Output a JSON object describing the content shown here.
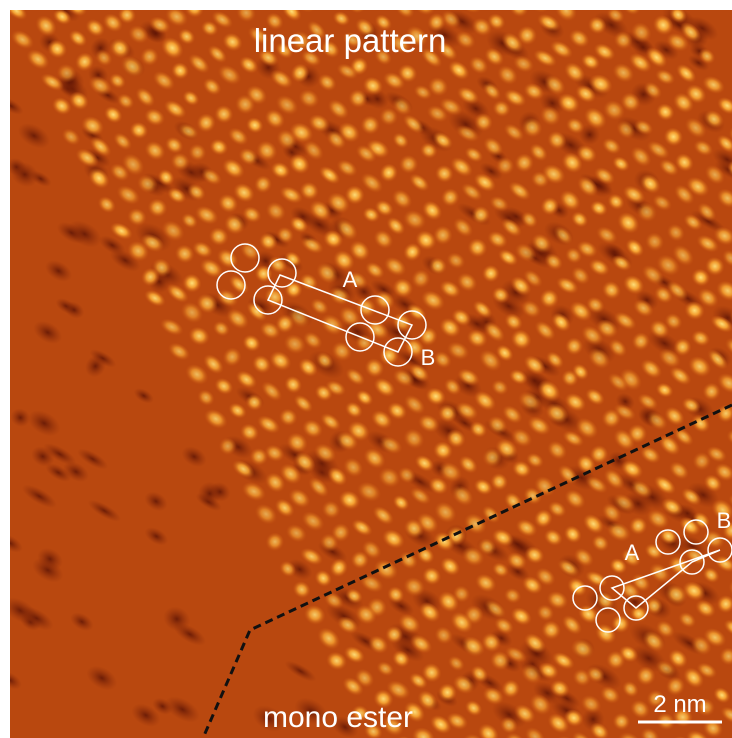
{
  "image": {
    "top_label": "linear pattern",
    "bottom_label": "mono ester",
    "scale_bar": "2 nm",
    "unit_cell_upper": {
      "corner_a": "A",
      "corner_b": "B"
    },
    "unit_cell_lower": {
      "corner_a": "A",
      "corner_b": "B"
    }
  }
}
